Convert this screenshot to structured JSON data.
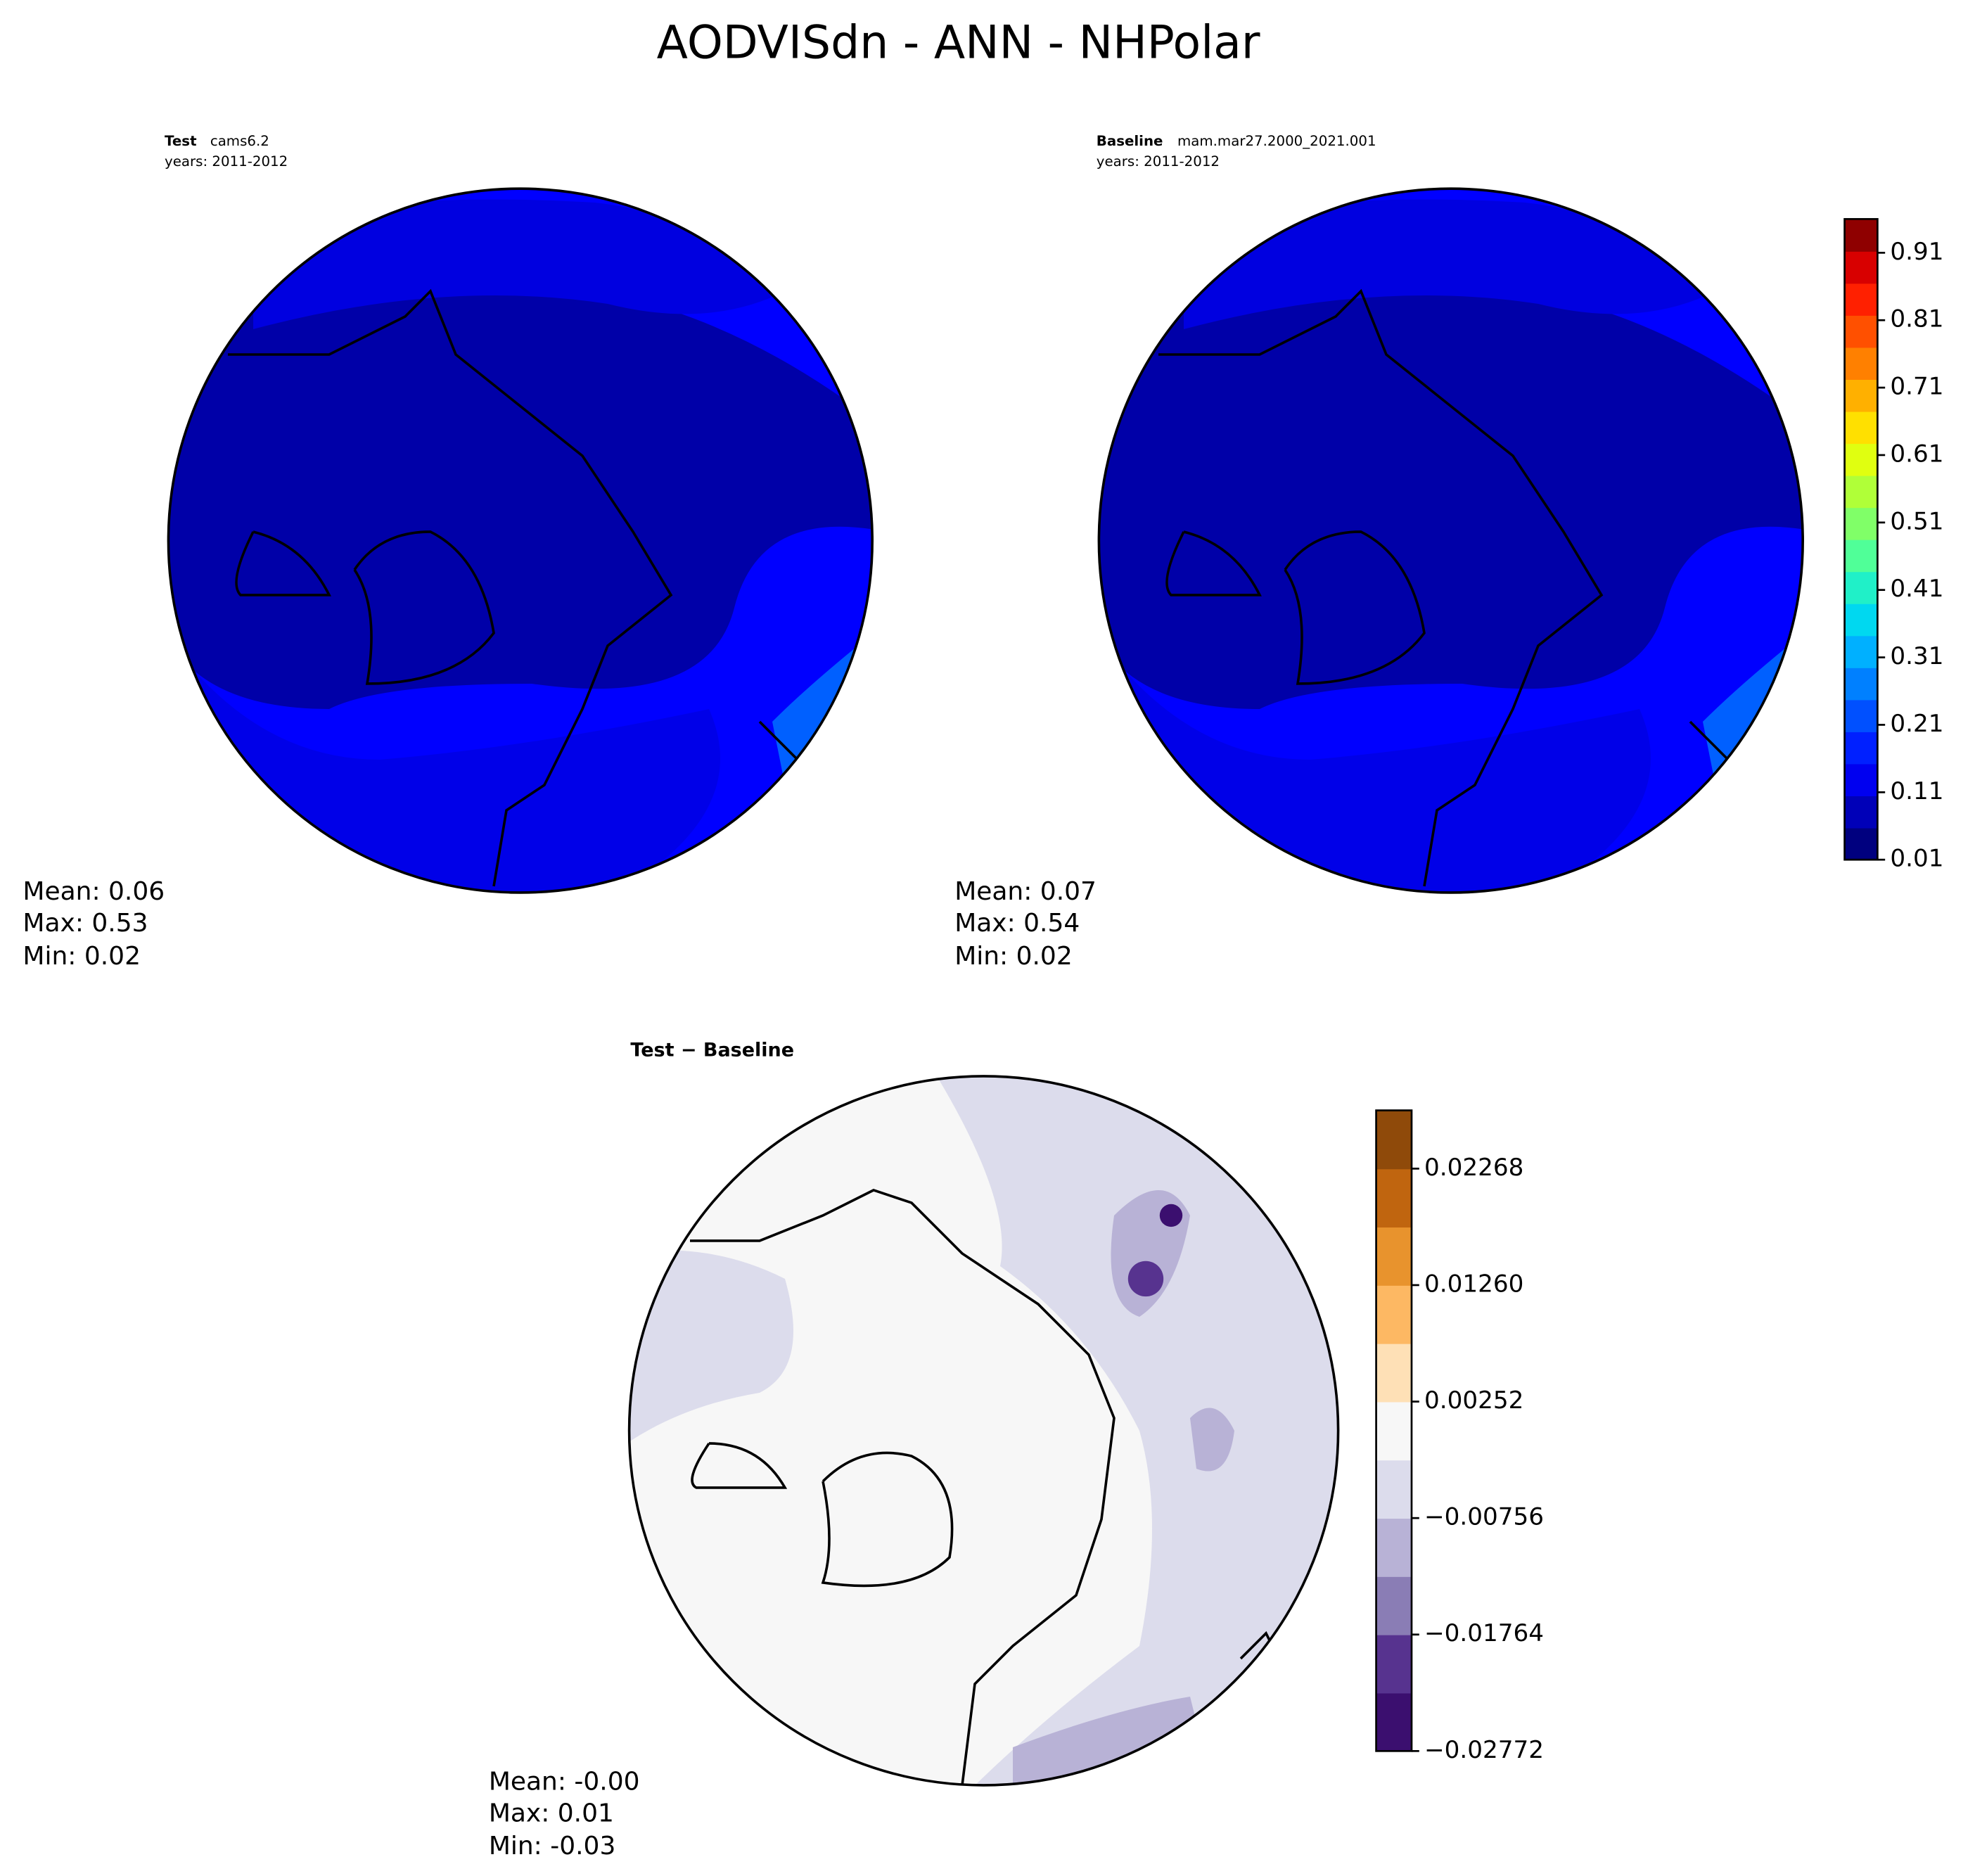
{
  "title": "AODVISdn - ANN - NHPolar",
  "panels": [
    {
      "label": "Test",
      "name": "cams6.2",
      "years": "years: 2011-2012",
      "stats": [
        "Mean:  0.06",
        "Max:  0.53",
        "Min:  0.02"
      ]
    },
    {
      "label": "Baseline",
      "name": "mam.mar27.2000_2021.001",
      "years": "years: 2011-2012",
      "stats": [
        "Mean:  0.07",
        "Max:  0.54",
        "Min:  0.02"
      ]
    },
    {
      "label": "Test − Baseline",
      "stats": [
        "Mean: -0.00",
        "Max:  0.01",
        "Min: -0.03"
      ]
    }
  ],
  "colorbars": [
    {
      "lim": [
        0.01,
        0.96
      ],
      "ticks": [
        0.01,
        0.11,
        0.21,
        0.31,
        0.41,
        0.51,
        0.61,
        0.71,
        0.81,
        0.91
      ],
      "colors": [
        "#00007f",
        "#0000b8",
        "#0000f0",
        "#0020ff",
        "#0050ff",
        "#0080ff",
        "#00b0ff",
        "#00d8f0",
        "#20f0c8",
        "#50ff98",
        "#80ff68",
        "#b0ff38",
        "#e0ff10",
        "#ffe000",
        "#ffb000",
        "#ff8000",
        "#ff5000",
        "#ff2000",
        "#d80000",
        "#8f0000"
      ]
    },
    {
      "lim": [
        -0.02772,
        0.02772
      ],
      "ticks": [
        {
          "value": -0.02772,
          "label": "−0.02772"
        },
        {
          "value": -0.01764,
          "label": "−0.01764"
        },
        {
          "value": -0.00756,
          "label": "−0.00756"
        },
        0.00252,
        {
          "value": 0.0126,
          "label": "0.01260"
        },
        0.02268
      ],
      "colors": [
        "#3b0f6f",
        "#57338f",
        "#8a7db5",
        "#b8b2d6",
        "#dcdcec",
        "#f7f7f7",
        "#fee0b6",
        "#fdb863",
        "#e8932d",
        "#c0650f",
        "#8f4a0a"
      ]
    }
  ]
}
